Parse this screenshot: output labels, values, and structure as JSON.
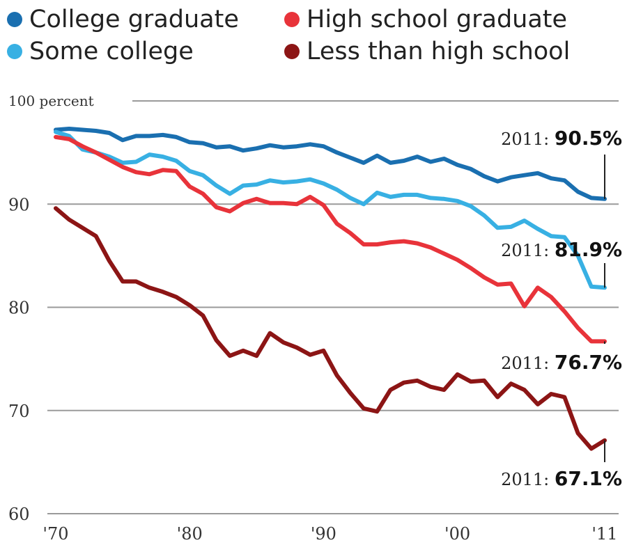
{
  "chart_data": {
    "type": "line",
    "title": "",
    "xlabel": "",
    "ylabel": "",
    "ylim": [
      60,
      100
    ],
    "xlim": [
      1970,
      2011
    ],
    "yticks": [
      {
        "value": 100,
        "label": "100 percent"
      },
      {
        "value": 90,
        "label": "90"
      },
      {
        "value": 80,
        "label": "80"
      },
      {
        "value": 70,
        "label": "70"
      },
      {
        "value": 60,
        "label": "60"
      }
    ],
    "xticks": [
      {
        "value": 1970,
        "label": "'70"
      },
      {
        "value": 1980,
        "label": "'80"
      },
      {
        "value": 1990,
        "label": "'90"
      },
      {
        "value": 2000,
        "label": "'00"
      },
      {
        "value": 2011,
        "label": "'11"
      }
    ],
    "grid": true,
    "legend_position": "top",
    "x": [
      1970,
      1971,
      1972,
      1973,
      1974,
      1975,
      1976,
      1977,
      1978,
      1979,
      1980,
      1981,
      1982,
      1983,
      1984,
      1985,
      1986,
      1987,
      1988,
      1989,
      1990,
      1991,
      1992,
      1993,
      1994,
      1995,
      1996,
      1997,
      1998,
      1999,
      2000,
      2001,
      2002,
      2003,
      2004,
      2005,
      2006,
      2007,
      2008,
      2009,
      2010,
      2011
    ],
    "series": [
      {
        "name": "College graduate",
        "color": "#1a6fb0",
        "values": [
          97.2,
          97.3,
          97.2,
          97.1,
          96.9,
          96.2,
          96.6,
          96.6,
          96.7,
          96.5,
          96.0,
          95.9,
          95.5,
          95.6,
          95.2,
          95.4,
          95.7,
          95.5,
          95.6,
          95.8,
          95.6,
          95.0,
          94.5,
          94.0,
          94.7,
          94.0,
          94.2,
          94.6,
          94.1,
          94.4,
          93.8,
          93.4,
          92.7,
          92.2,
          92.6,
          92.8,
          93.0,
          92.5,
          92.3,
          91.2,
          90.6,
          90.5
        ]
      },
      {
        "name": "Some college",
        "color": "#38b0e3",
        "values": [
          97.0,
          96.6,
          95.3,
          95.0,
          94.6,
          94.0,
          94.1,
          94.8,
          94.6,
          94.2,
          93.2,
          92.8,
          91.8,
          91.0,
          91.8,
          91.9,
          92.3,
          92.1,
          92.2,
          92.4,
          92.0,
          91.4,
          90.6,
          90.0,
          91.1,
          90.7,
          90.9,
          90.9,
          90.6,
          90.5,
          90.3,
          89.8,
          88.9,
          87.7,
          87.8,
          88.4,
          87.6,
          86.9,
          86.8,
          85.0,
          82.0,
          81.9
        ]
      },
      {
        "name": "High school graduate",
        "color": "#e8333a",
        "values": [
          96.5,
          96.3,
          95.6,
          95.0,
          94.3,
          93.6,
          93.1,
          92.9,
          93.3,
          93.2,
          91.7,
          91.0,
          89.7,
          89.3,
          90.1,
          90.5,
          90.1,
          90.1,
          90.0,
          90.7,
          89.9,
          88.1,
          87.2,
          86.1,
          86.1,
          86.3,
          86.4,
          86.2,
          85.8,
          85.2,
          84.6,
          83.8,
          82.9,
          82.2,
          82.3,
          80.1,
          81.9,
          81.0,
          79.6,
          78.0,
          76.7,
          76.7
        ]
      },
      {
        "name": "Less than high school",
        "color": "#8c1515",
        "values": [
          89.6,
          88.5,
          87.7,
          86.9,
          84.5,
          82.5,
          82.5,
          81.9,
          81.5,
          81.0,
          80.2,
          79.2,
          76.8,
          75.3,
          75.8,
          75.3,
          77.5,
          76.6,
          76.1,
          75.4,
          75.8,
          73.4,
          71.7,
          70.2,
          69.9,
          72.0,
          72.7,
          72.9,
          72.3,
          72.0,
          73.5,
          72.8,
          72.9,
          71.3,
          72.6,
          72.0,
          70.6,
          71.6,
          71.3,
          67.8,
          66.3,
          67.1
        ]
      }
    ],
    "annotations": [
      {
        "prefix": "2011: ",
        "value": "90.5%",
        "series": "College graduate"
      },
      {
        "prefix": "2011: ",
        "value": "81.9%",
        "series": "Some college"
      },
      {
        "prefix": "2011: ",
        "value": "76.7%",
        "series": "High school graduate"
      },
      {
        "prefix": "2011: ",
        "value": "67.1%",
        "series": "Less than high school"
      }
    ]
  }
}
